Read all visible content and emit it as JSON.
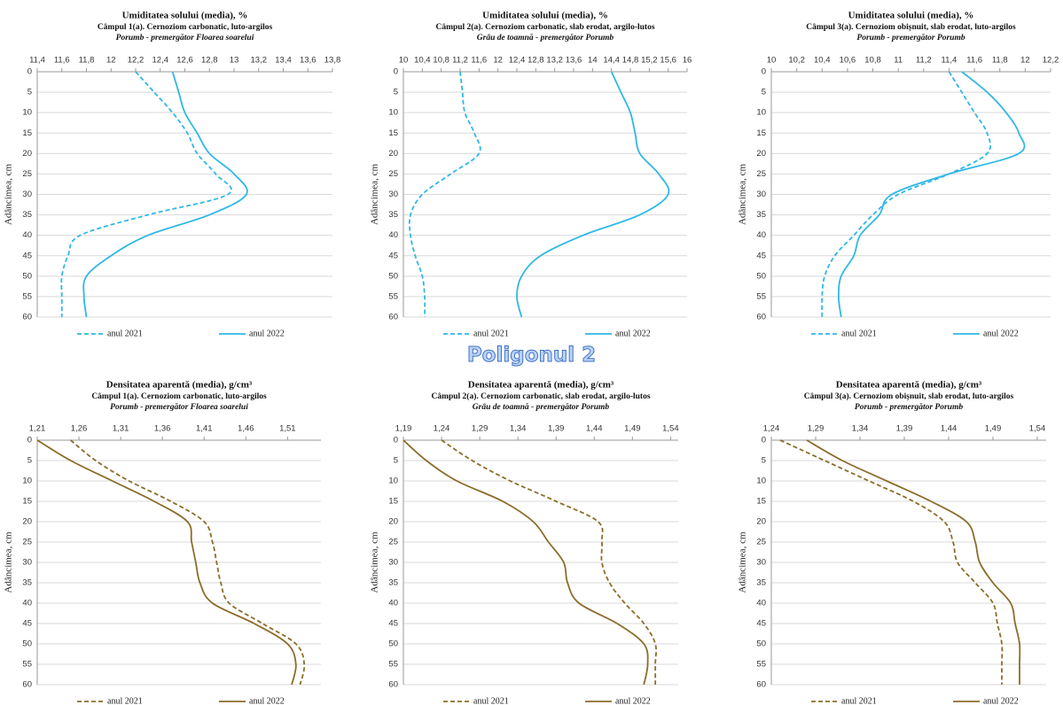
{
  "heading": "Poligonul 2",
  "chart_data": [
    {
      "type": "line",
      "title": "Umiditatea solului (media), %",
      "subtitle": "Câmpul 1(a). Cernoziom carbonatic, luto-argilos",
      "crop": "Porumb - premergător Floarea soarelui",
      "ylabel": "Adâncimea, cm",
      "y": [
        0,
        5,
        10,
        15,
        20,
        25,
        30,
        35,
        40,
        45,
        50,
        55,
        60
      ],
      "ylim": [
        0,
        60
      ],
      "y_inverted": true,
      "yticks": [
        0,
        5,
        10,
        15,
        20,
        25,
        30,
        35,
        40,
        45,
        50,
        55,
        60
      ],
      "grid": true,
      "xlim": [
        11.4,
        13.8
      ],
      "xticks": [
        {
          "value": 11.4,
          "label": "11,4"
        },
        {
          "value": 11.6,
          "label": "11,6"
        },
        {
          "value": 11.8,
          "label": "11,8"
        },
        12,
        {
          "value": 12.2,
          "label": "12,2"
        },
        {
          "value": 12.4,
          "label": "12,4"
        },
        {
          "value": 12.6,
          "label": "12,6"
        },
        {
          "value": 12.8,
          "label": "12,8"
        },
        13,
        {
          "value": 13.2,
          "label": "13,2"
        },
        {
          "value": 13.4,
          "label": "13,4"
        },
        {
          "value": 13.6,
          "label": "13,6"
        },
        {
          "value": 13.8,
          "label": "13,8"
        }
      ],
      "series": [
        {
          "name": "anul 2021",
          "color": "#2fb8e6",
          "line_style": "dashed",
          "values": [
            12.2,
            12.35,
            12.5,
            12.62,
            12.7,
            12.85,
            12.95,
            12.3,
            11.75,
            11.65,
            11.6,
            11.6,
            11.6
          ]
        },
        {
          "name": "anul 2022",
          "color": "#2fb8e6",
          "line_style": "solid",
          "values": [
            12.5,
            12.55,
            12.6,
            12.7,
            12.8,
            13.0,
            13.1,
            12.8,
            12.3,
            12.0,
            11.8,
            11.78,
            11.8
          ]
        }
      ]
    },
    {
      "type": "line",
      "title": "Umiditatea solului (media), %",
      "subtitle": "Câmpul 2(a). Cernoziom carbonatic, slab erodat, argilo-lutos",
      "crop": "Grâu de toamnă - premergător Porumb",
      "ylabel": "Adâncimea, cm",
      "y": [
        0,
        5,
        10,
        15,
        20,
        25,
        30,
        35,
        40,
        45,
        50,
        55,
        60
      ],
      "ylim": [
        0,
        60
      ],
      "y_inverted": true,
      "yticks": [
        0,
        5,
        10,
        15,
        20,
        25,
        30,
        35,
        40,
        45,
        50,
        55,
        60
      ],
      "grid": true,
      "xlim": [
        10,
        16
      ],
      "xticks": [
        10,
        {
          "value": 10.4,
          "label": "10,4"
        },
        {
          "value": 10.8,
          "label": "10,8"
        },
        {
          "value": 11.2,
          "label": "11,2"
        },
        {
          "value": 11.6,
          "label": "11,6"
        },
        12,
        {
          "value": 12.4,
          "label": "12,4"
        },
        {
          "value": 12.8,
          "label": "12,8"
        },
        {
          "value": 13.2,
          "label": "13,2"
        },
        {
          "value": 13.6,
          "label": "13,6"
        },
        14,
        {
          "value": 14.4,
          "label": "14,4"
        },
        {
          "value": 14.8,
          "label": "14,8"
        },
        {
          "value": 15.2,
          "label": "15,2"
        },
        {
          "value": 15.6,
          "label": "15,6"
        },
        16
      ],
      "series": [
        {
          "name": "anul 2021",
          "color": "#2fb8e6",
          "line_style": "dashed",
          "values": [
            11.2,
            11.25,
            11.3,
            11.5,
            11.6,
            11.0,
            10.4,
            10.15,
            10.15,
            10.25,
            10.4,
            10.45,
            10.45
          ]
        },
        {
          "name": "anul 2022",
          "color": "#2fb8e6",
          "line_style": "solid",
          "values": [
            14.4,
            14.6,
            14.8,
            14.9,
            15.0,
            15.4,
            15.6,
            15.0,
            13.8,
            12.9,
            12.5,
            12.4,
            12.5
          ]
        }
      ]
    },
    {
      "type": "line",
      "title": "Umiditatea solului (media), %",
      "subtitle": "Câmpul 3(a). Cernoziom obișnuit, slab erodat, luto-argilos",
      "crop": "Porumb - premergător Porumb",
      "ylabel": "Adâncimea, cm",
      "y": [
        0,
        5,
        10,
        15,
        20,
        25,
        30,
        35,
        40,
        45,
        50,
        55,
        60
      ],
      "ylim": [
        0,
        60
      ],
      "y_inverted": true,
      "yticks": [
        0,
        5,
        10,
        15,
        20,
        25,
        30,
        35,
        40,
        45,
        50,
        55,
        60
      ],
      "grid": true,
      "xlim": [
        10,
        12.2
      ],
      "xticks": [
        10,
        {
          "value": 10.2,
          "label": "10,2"
        },
        {
          "value": 10.4,
          "label": "10,4"
        },
        {
          "value": 10.6,
          "label": "10,6"
        },
        {
          "value": 10.8,
          "label": "10,8"
        },
        11,
        {
          "value": 11.2,
          "label": "11,2"
        },
        {
          "value": 11.4,
          "label": "11,4"
        },
        {
          "value": 11.6,
          "label": "11,6"
        },
        {
          "value": 11.8,
          "label": "11,8"
        },
        12,
        {
          "value": 12.2,
          "label": "12,2"
        }
      ],
      "series": [
        {
          "name": "anul 2021",
          "color": "#2fb8e6",
          "line_style": "dashed",
          "values": [
            11.4,
            11.5,
            11.6,
            11.7,
            11.7,
            11.4,
            11.0,
            10.8,
            10.65,
            10.5,
            10.42,
            10.4,
            10.4
          ]
        },
        {
          "name": "anul 2022",
          "color": "#2fb8e6",
          "line_style": "solid",
          "values": [
            11.5,
            11.7,
            11.85,
            11.95,
            11.95,
            11.4,
            10.95,
            10.85,
            10.7,
            10.65,
            10.55,
            10.53,
            10.55
          ]
        }
      ]
    },
    {
      "type": "line",
      "title": "Densitatea aparentă (media), g/cm³",
      "subtitle": "Câmpul 1(a). Cernoziom carbonatic, luto-argilos",
      "crop": "Porumb - premergător Floarea soarelui",
      "ylabel": "Adâncimea, cm",
      "y": [
        0,
        5,
        10,
        15,
        20,
        25,
        30,
        35,
        40,
        45,
        50,
        55,
        60
      ],
      "ylim": [
        0,
        60
      ],
      "y_inverted": true,
      "yticks": [
        0,
        5,
        10,
        15,
        20,
        25,
        30,
        35,
        40,
        45,
        50,
        55,
        60
      ],
      "grid": true,
      "xlim": [
        1.21,
        1.55
      ],
      "xticks": [
        {
          "value": 1.21,
          "label": "1,21"
        },
        {
          "value": 1.26,
          "label": "1,26"
        },
        {
          "value": 1.31,
          "label": "1,31"
        },
        {
          "value": 1.36,
          "label": "1,36"
        },
        {
          "value": 1.41,
          "label": "1,41"
        },
        {
          "value": 1.46,
          "label": "1,46"
        },
        {
          "value": 1.51,
          "label": "1,51"
        }
      ],
      "series": [
        {
          "name": "anul 2021",
          "color": "#8b6d2a",
          "line_style": "dashed",
          "values": [
            1.25,
            1.28,
            1.32,
            1.37,
            1.41,
            1.42,
            1.425,
            1.43,
            1.44,
            1.48,
            1.52,
            1.53,
            1.525
          ]
        },
        {
          "name": "anul 2022",
          "color": "#8b6d2a",
          "line_style": "solid",
          "values": [
            1.21,
            1.25,
            1.3,
            1.35,
            1.39,
            1.395,
            1.4,
            1.405,
            1.42,
            1.47,
            1.51,
            1.52,
            1.515
          ]
        }
      ]
    },
    {
      "type": "line",
      "title": "Densitatea aparentă (media), g/cm³",
      "subtitle": "Câmpul 2(a). Cernoziom carbonatic, slab erodat, argilo-lutos",
      "crop": "Grâu de toamnă - premergător Porumb",
      "ylabel": "Adâncimea, cm",
      "y": [
        0,
        5,
        10,
        15,
        20,
        25,
        30,
        35,
        40,
        45,
        50,
        55,
        60
      ],
      "ylim": [
        0,
        60
      ],
      "y_inverted": true,
      "yticks": [
        0,
        5,
        10,
        15,
        20,
        25,
        30,
        35,
        40,
        45,
        50,
        55,
        60
      ],
      "grid": true,
      "xlim": [
        1.19,
        1.55
      ],
      "xticks": [
        {
          "value": 1.19,
          "label": "1,19"
        },
        {
          "value": 1.24,
          "label": "1,24"
        },
        {
          "value": 1.29,
          "label": "1,29"
        },
        {
          "value": 1.34,
          "label": "1,34"
        },
        {
          "value": 1.39,
          "label": "1,39"
        },
        {
          "value": 1.44,
          "label": "1,44"
        },
        {
          "value": 1.49,
          "label": "1,49"
        },
        {
          "value": 1.54,
          "label": "1,54"
        }
      ],
      "series": [
        {
          "name": "anul 2021",
          "color": "#8b6d2a",
          "line_style": "dashed",
          "values": [
            1.24,
            1.28,
            1.33,
            1.39,
            1.445,
            1.45,
            1.45,
            1.46,
            1.48,
            1.505,
            1.52,
            1.52,
            1.52
          ]
        },
        {
          "name": "anul 2022",
          "color": "#8b6d2a",
          "line_style": "solid",
          "values": [
            1.19,
            1.22,
            1.26,
            1.32,
            1.36,
            1.38,
            1.4,
            1.405,
            1.42,
            1.47,
            1.505,
            1.51,
            1.505
          ]
        }
      ]
    },
    {
      "type": "line",
      "title": "Densitatea aparentă (media), g/cm³",
      "subtitle": "Câmpul 3(a). Cernoziom obișnuit, slab erodat, luto-argilos",
      "crop": "Porumb - premergător Porumb",
      "ylabel": "Adâncimea, cm",
      "y": [
        0,
        5,
        10,
        15,
        20,
        25,
        30,
        35,
        40,
        45,
        50,
        55,
        60
      ],
      "ylim": [
        0,
        60
      ],
      "y_inverted": true,
      "yticks": [
        0,
        5,
        10,
        15,
        20,
        25,
        30,
        35,
        40,
        45,
        50,
        55,
        60
      ],
      "grid": true,
      "xlim": [
        1.24,
        1.55
      ],
      "xticks": [
        {
          "value": 1.24,
          "label": "1,24"
        },
        {
          "value": 1.29,
          "label": "1,29"
        },
        {
          "value": 1.34,
          "label": "1,34"
        },
        {
          "value": 1.39,
          "label": "1,39"
        },
        {
          "value": 1.44,
          "label": "1,44"
        },
        {
          "value": 1.49,
          "label": "1,49"
        },
        {
          "value": 1.54,
          "label": "1,54"
        }
      ],
      "series": [
        {
          "name": "anul 2021",
          "color": "#8b6d2a",
          "line_style": "dashed",
          "values": [
            1.25,
            1.3,
            1.35,
            1.4,
            1.435,
            1.445,
            1.45,
            1.47,
            1.49,
            1.495,
            1.5,
            1.5,
            1.5
          ]
        },
        {
          "name": "anul 2022",
          "color": "#8b6d2a",
          "line_style": "solid",
          "values": [
            1.28,
            1.32,
            1.37,
            1.42,
            1.46,
            1.47,
            1.475,
            1.49,
            1.51,
            1.515,
            1.52,
            1.52,
            1.52
          ]
        }
      ]
    }
  ]
}
